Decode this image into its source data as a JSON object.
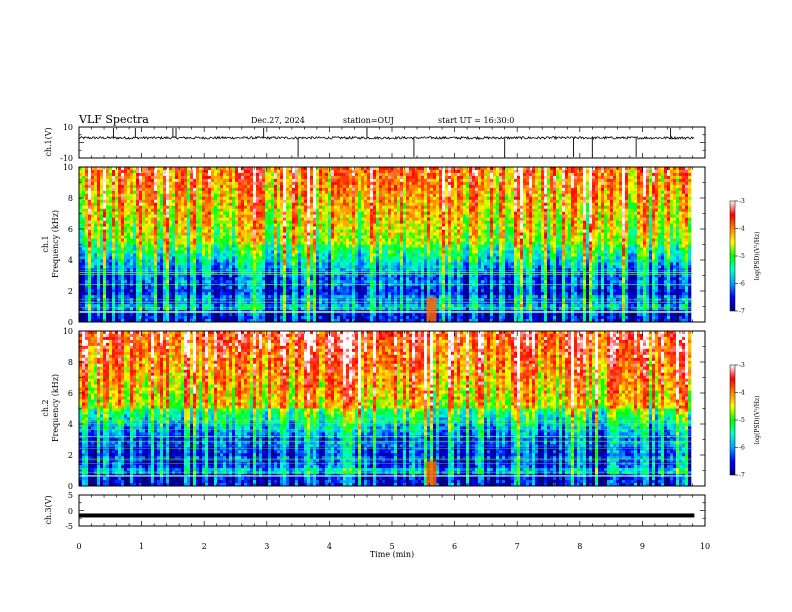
{
  "header": {
    "title": "VLF Spectra",
    "date": "Dec.27, 2024",
    "station": "station=OUJ",
    "start_ut": "start UT =  16:30:0"
  },
  "chart_data": [
    {
      "type": "line",
      "name": "ch1-waveform",
      "ylabel": "ch.1(V)",
      "ylim": [
        -10,
        10
      ],
      "y_ticks": [
        "10",
        "-10"
      ],
      "xlim": [
        0,
        10
      ],
      "baseline": 3,
      "grid": false
    },
    {
      "type": "heatmap",
      "name": "ch1-spectrogram",
      "ylabel_line1": "ch.1",
      "ylabel_line2": "Frequency (kHz)",
      "ylim": [
        0,
        10
      ],
      "y_ticks": [
        "0",
        "2",
        "4",
        "6",
        "8",
        "10"
      ],
      "xlim": [
        0,
        9.8
      ],
      "colorbar": {
        "label": "log(PSD)(V²/Hz)",
        "range": [
          -7,
          -3
        ],
        "ticks": [
          "-3",
          "-4",
          "-5",
          "-6",
          "-7"
        ],
        "colors": [
          "#000080",
          "#0000ff",
          "#00a0ff",
          "#00ffcc",
          "#00ff00",
          "#ffff00",
          "#ff8000",
          "#ff0000",
          "#ffffff"
        ]
      }
    },
    {
      "type": "heatmap",
      "name": "ch2-spectrogram",
      "ylabel_line1": "ch.2",
      "ylabel_line2": "Frequency (kHz)",
      "ylim": [
        0,
        10
      ],
      "y_ticks": [
        "0",
        "2",
        "4",
        "6",
        "8",
        "10"
      ],
      "xlim": [
        0,
        9.8
      ],
      "colorbar": {
        "label": "log(PSD)(V²/Hz)",
        "range": [
          -7,
          -3
        ],
        "ticks": [
          "-3",
          "-4",
          "-5",
          "-6",
          "-7"
        ],
        "colors": [
          "#000080",
          "#0000ff",
          "#00a0ff",
          "#00ffcc",
          "#00ff00",
          "#ffff00",
          "#ff8000",
          "#ff0000",
          "#ffffff"
        ]
      }
    },
    {
      "type": "line",
      "name": "ch3-waveform",
      "ylabel": "ch.3(V)",
      "ylim": [
        -5,
        5
      ],
      "y_ticks": [
        "5",
        "0",
        "-5"
      ],
      "xlim": [
        0,
        10
      ],
      "value": -1.6,
      "grid": false
    }
  ],
  "x_axis": {
    "label": "Time (min)",
    "ticks": [
      "0",
      "1",
      "2",
      "3",
      "4",
      "5",
      "6",
      "7",
      "8",
      "9",
      "10"
    ],
    "range": [
      0,
      10
    ]
  }
}
